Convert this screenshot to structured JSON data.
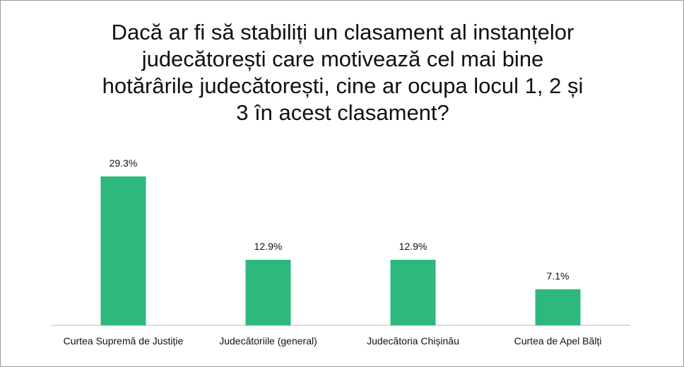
{
  "chart_data": {
    "type": "bar",
    "title": "Dacă ar fi să stabiliți un clasament al instanțelor judecătorești care motivează cel mai bine hotărârile judecătorești, cine ar ocupa locul 1, 2 și 3 în acest clasament?",
    "categories": [
      "Curtea Supremă de Justiție",
      "Judecătoriile (general)",
      "Judecătoria Chișinău",
      "Curtea de Apel Bălți"
    ],
    "values": [
      29.3,
      12.9,
      12.9,
      7.1
    ],
    "value_labels": [
      "29.3%",
      "12.9%",
      "12.9%",
      "7.1%"
    ],
    "color": "#2db87d"
  }
}
